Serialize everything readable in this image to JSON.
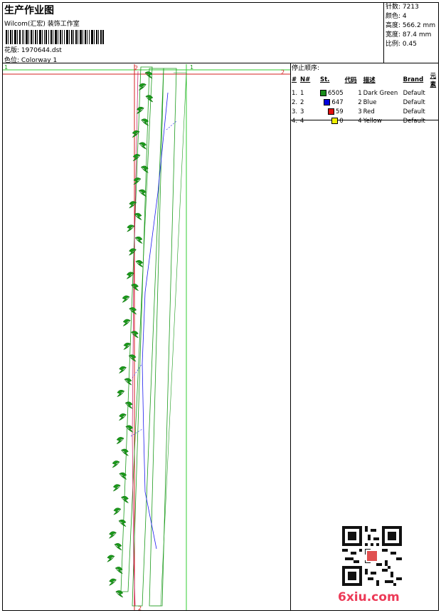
{
  "header": {
    "title": "生产作业图",
    "company": "Wilcom(汇宏) 装饰工作室",
    "design_label": "花版:",
    "design_value": "1970644.dst",
    "colorway_label": "色位:",
    "colorway_value": "Colorway 1"
  },
  "stats": {
    "stitches_label": "针数:",
    "stitches_value": "7213",
    "colors_label": "颜色:",
    "colors_value": "4",
    "height_label": "高度:",
    "height_value": "566.2 mm",
    "width_label": "宽度:",
    "width_value": "87.4 mm",
    "scale_label": "比例:",
    "scale_value": "0.45"
  },
  "sequence": {
    "title": "停止顺序:",
    "headers": [
      "#",
      "N#",
      "St.",
      "代码",
      "描述",
      "Brand",
      "元素"
    ],
    "rows": [
      {
        "idx": "1.",
        "n": "1",
        "color": "#1a8c1a",
        "st": "6505",
        "code": "1",
        "desc": "Dark Green",
        "brand": "Default"
      },
      {
        "idx": "2.",
        "n": "2",
        "color": "#0000dd",
        "st": "647",
        "code": "2",
        "desc": "Blue",
        "brand": "Default"
      },
      {
        "idx": "3.",
        "n": "3",
        "color": "#e01010",
        "st": "59",
        "code": "3",
        "desc": "Red",
        "brand": "Default"
      },
      {
        "idx": "4.",
        "n": "4",
        "color": "#f0f000",
        "st": "0",
        "code": "4",
        "desc": "Yellow",
        "brand": "Default"
      }
    ]
  },
  "guides": {
    "green_label_left": "1",
    "green_label_right": "1",
    "red_label_top": "2",
    "red_label_right": "2",
    "red_label_bottom": "2"
  },
  "watermark": "6xiu.com"
}
